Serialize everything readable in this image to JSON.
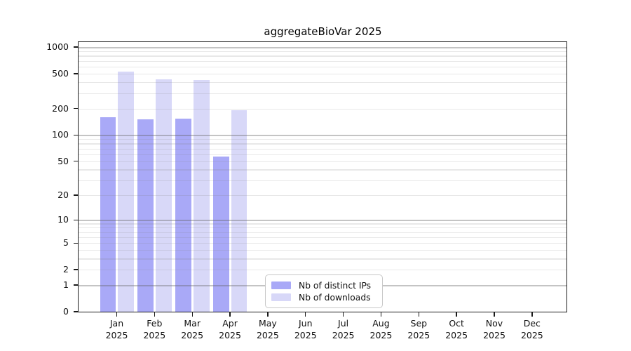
{
  "page": {
    "background": "#ffffff"
  },
  "chart_data": {
    "type": "bar",
    "title": "aggregateBioVar 2025",
    "xlabel": "",
    "ylabel": "",
    "categories": [
      "Jan 2025",
      "Feb 2025",
      "Mar 2025",
      "Apr 2025",
      "May 2025",
      "Jun 2025",
      "Jul 2025",
      "Aug 2025",
      "Sep 2025",
      "Oct 2025",
      "Nov 2025",
      "Dec 2025"
    ],
    "series": [
      {
        "name": "Nb of distinct IPs",
        "color": "#a9a9f7",
        "values": [
          161,
          152,
          155,
          57,
          0,
          0,
          0,
          0,
          0,
          0,
          0,
          0
        ]
      },
      {
        "name": "Nb of downloads",
        "color": "#d8d8f8",
        "values": [
          526,
          430,
          426,
          191,
          0,
          0,
          0,
          0,
          0,
          0,
          0,
          0
        ]
      }
    ],
    "yscale": "log1p",
    "ylim": [
      0,
      1141
    ],
    "yticks": [
      0,
      1,
      2,
      5,
      10,
      20,
      50,
      100,
      200,
      500,
      1000
    ],
    "grid_major": [
      1,
      10,
      100,
      1000
    ],
    "grid_minor": [
      2,
      3,
      4,
      5,
      6,
      7,
      8,
      9,
      20,
      30,
      40,
      50,
      60,
      70,
      80,
      90,
      200,
      300,
      400,
      500,
      600,
      700,
      800,
      900
    ],
    "grid": true,
    "legend_position": "lower center",
    "axis_color": "#1a1a1a",
    "gridline_minor_color": "#e7e7e7",
    "gridline_major_color": "#c8c8c8"
  }
}
